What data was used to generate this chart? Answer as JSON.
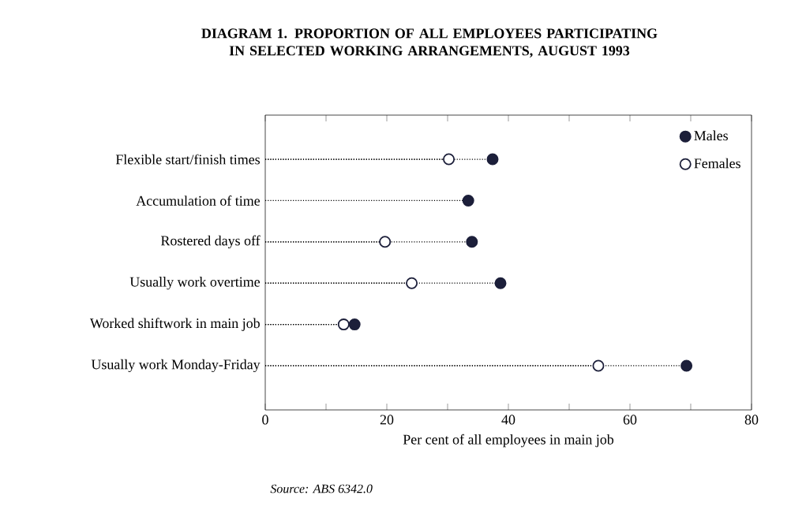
{
  "chart_data": {
    "type": "lollipop",
    "orientation": "horizontal",
    "title": "DIAGRAM 1. PROPORTION OF ALL EMPLOYEES PARTICIPATING IN SELECTED WORKING ARRANGEMENTS, AUGUST 1993",
    "xlabel": "Per cent of all employees in main job",
    "annotations": [
      "Source: ABS 6342.0"
    ],
    "categories": [
      "Flexible start/finish times",
      "Accumulation of time",
      "Rostered days off",
      "Usually work overtime",
      "Worked shiftwork in main job",
      "Usually work Monday-Friday"
    ],
    "series": [
      {
        "name": "Males",
        "color": "#1c1f3a",
        "values": [
          37.4,
          33.4,
          34.0,
          38.7,
          14.7,
          69.3
        ]
      },
      {
        "name": "Females",
        "color": "#ffffff",
        "values": [
          30.2,
          null,
          19.7,
          24.1,
          12.9,
          54.8
        ]
      }
    ],
    "xlim": [
      0,
      80
    ],
    "xticks": [
      0,
      {
        "value": 10,
        "label": null
      },
      20,
      {
        "value": 30,
        "label": null
      },
      40,
      {
        "value": 50,
        "label": null
      },
      60,
      {
        "value": 70,
        "label": null
      },
      80
    ],
    "grid": false,
    "legend": "top right",
    "marker": "circle",
    "line_style": "dotted"
  }
}
